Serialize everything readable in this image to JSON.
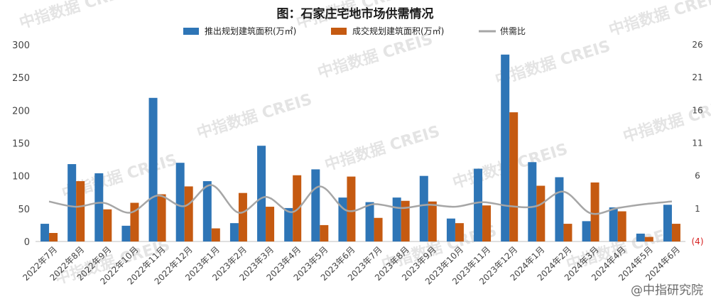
{
  "chart_data": {
    "type": "bar",
    "title": "图：石家庄宅地市场供需情况",
    "categories": [
      "2022年7月",
      "2022年8月",
      "2022年9月",
      "2022年10月",
      "2022年11月",
      "2022年12月",
      "2023年1月",
      "2023年2月",
      "2023年3月",
      "2023年4月",
      "2023年5月",
      "2023年6月",
      "2023年7月",
      "2023年8月",
      "2023年9月",
      "2023年10月",
      "2023年11月",
      "2023年12月",
      "2024年1月",
      "2024年2月",
      "2024年3月",
      "2024年4月",
      "2024年5月",
      "2024年6月"
    ],
    "series": [
      {
        "name": "推出规划建筑面积(万㎡)",
        "type": "bar",
        "axis": "left",
        "color": "#2e75b6",
        "values": [
          27,
          118,
          104,
          24,
          219,
          120,
          92,
          28,
          146,
          51,
          110,
          67,
          60,
          67,
          100,
          35,
          111,
          285,
          121,
          98,
          31,
          52,
          12,
          56
        ]
      },
      {
        "name": "成交规划建筑面积(万㎡)",
        "type": "bar",
        "axis": "left",
        "color": "#c55a11",
        "values": [
          13,
          92,
          49,
          59,
          72,
          84,
          20,
          74,
          53,
          101,
          25,
          99,
          36,
          62,
          61,
          28,
          55,
          197,
          85,
          27,
          90,
          46,
          7,
          27
        ]
      },
      {
        "name": "供需比",
        "type": "line",
        "axis": "right",
        "color": "#a6a6a6",
        "values": [
          2.1,
          1.3,
          1.9,
          0.4,
          3.0,
          1.4,
          4.6,
          0.4,
          2.8,
          0.5,
          4.4,
          0.7,
          1.7,
          1.1,
          1.6,
          1.3,
          2.0,
          1.4,
          1.4,
          3.6,
          0.3,
          1.1,
          1.7,
          2.1
        ]
      }
    ],
    "ylim_left": [
      0,
      300
    ],
    "yticks_left": [
      "0",
      "50",
      "100",
      "150",
      "200",
      "250",
      "300"
    ],
    "ylim_right": [
      -4,
      26
    ],
    "yticks_right": [
      "(4)",
      "1",
      "6",
      "11",
      "16",
      "21",
      "26"
    ],
    "legend_position": "top",
    "grid": false
  },
  "watermark": "中指数据 CREIS",
  "source_label": "@中指研究院"
}
